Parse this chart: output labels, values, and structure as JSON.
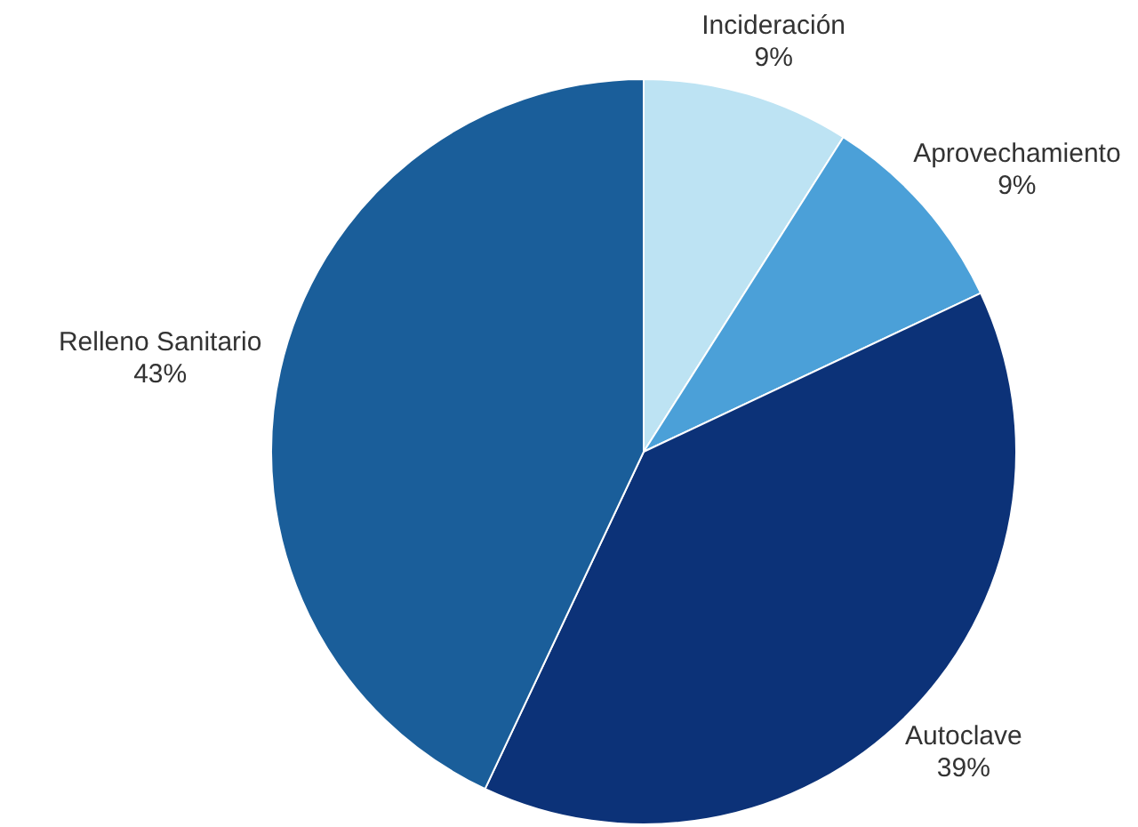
{
  "chart_data": {
    "type": "pie",
    "categories": [
      "Incideración",
      "Aprovechamiento",
      "Autoclave",
      "Relleno Sanitario"
    ],
    "values": [
      9,
      9,
      39,
      43
    ],
    "colors": [
      "#bde3f3",
      "#4ba0d8",
      "#0c3278",
      "#1a5e9a"
    ],
    "value_labels": [
      "9%",
      "9%",
      "39%",
      "43%"
    ],
    "legend": false
  }
}
